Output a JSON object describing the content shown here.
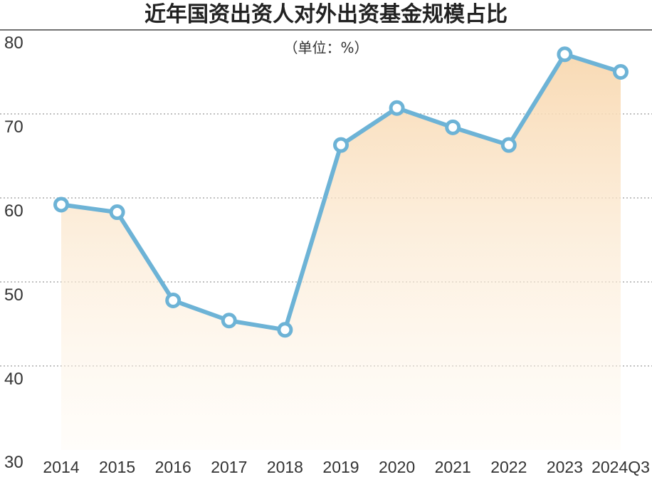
{
  "chart_data": {
    "type": "area",
    "title": "近年国资出资人对外出资基金规模占比",
    "unit_label": "（单位：%）",
    "categories": [
      "2014",
      "2015",
      "2016",
      "2017",
      "2018",
      "2019",
      "2020",
      "2021",
      "2022",
      "2023",
      "2024Q3"
    ],
    "series": [
      {
        "values": [
          59.2,
          58.3,
          47.8,
          45.4,
          44.3,
          66.3,
          70.7,
          68.4,
          66.3,
          77.1,
          75.0
        ]
      }
    ],
    "ylim": [
      30,
      80
    ],
    "yticks": [
      30,
      40,
      50,
      60,
      70,
      80
    ],
    "grid": true,
    "colors": {
      "line": "#6db3d6",
      "area_top": "#f8d8b0",
      "area_bottom": "#fffaf2"
    }
  }
}
